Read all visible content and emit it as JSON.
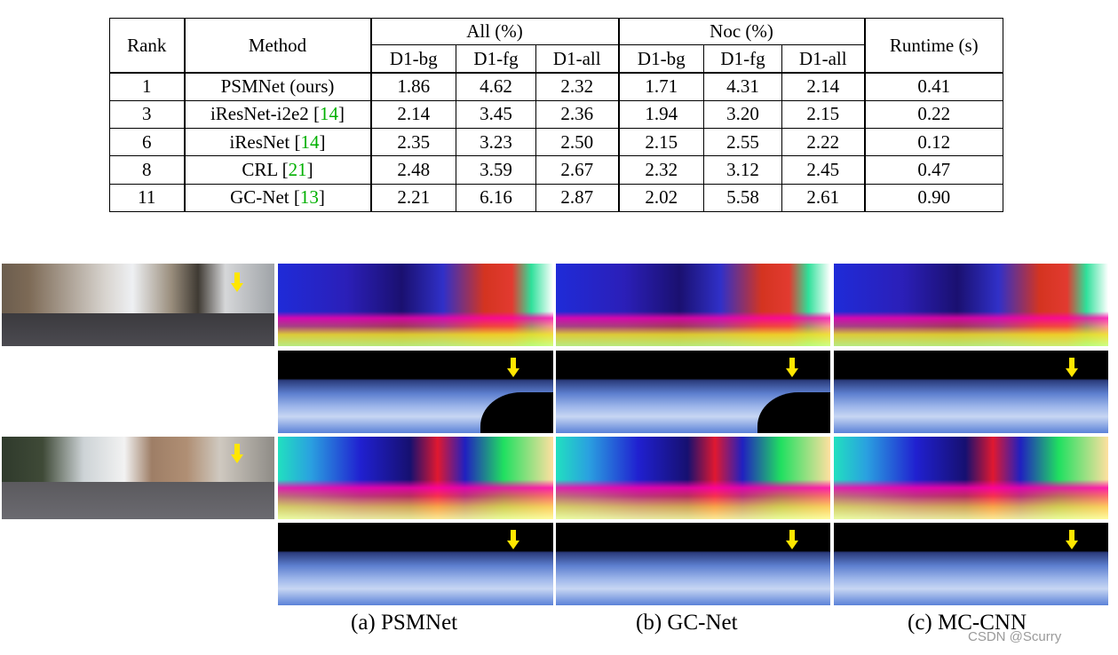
{
  "table": {
    "header": {
      "rank": "Rank",
      "method": "Method",
      "all_group": "All (%)",
      "noc_group": "Noc (%)",
      "runtime": "Runtime (s)",
      "sub": [
        "D1-bg",
        "D1-fg",
        "D1-all",
        "D1-bg",
        "D1-fg",
        "D1-all"
      ]
    },
    "rows": [
      {
        "rank": "1",
        "method": "PSMNet (ours)",
        "cite": "",
        "all_bg": "1.86",
        "all_fg": "4.62",
        "all_all": "2.32",
        "noc_bg": "1.71",
        "noc_fg": "4.31",
        "noc_all": "2.14",
        "runtime": "0.41"
      },
      {
        "rank": "3",
        "method": "iResNet-i2e2",
        "cite": "14",
        "all_bg": "2.14",
        "all_fg": "3.45",
        "all_all": "2.36",
        "noc_bg": "1.94",
        "noc_fg": "3.20",
        "noc_all": "2.15",
        "runtime": "0.22"
      },
      {
        "rank": "6",
        "method": "iResNet",
        "cite": "14",
        "all_bg": "2.35",
        "all_fg": "3.23",
        "all_all": "2.50",
        "noc_bg": "2.15",
        "noc_fg": "2.55",
        "noc_all": "2.22",
        "runtime": "0.12"
      },
      {
        "rank": "8",
        "method": "CRL",
        "cite": "21",
        "all_bg": "2.48",
        "all_fg": "3.59",
        "all_all": "2.67",
        "noc_bg": "2.32",
        "noc_fg": "3.12",
        "noc_all": "2.45",
        "runtime": "0.47"
      },
      {
        "rank": "11",
        "method": "GC-Net",
        "cite": "13",
        "all_bg": "2.21",
        "all_fg": "6.16",
        "all_all": "2.87",
        "noc_bg": "2.02",
        "noc_fg": "5.58",
        "noc_all": "2.61",
        "runtime": "0.90"
      }
    ]
  },
  "figure": {
    "captions": [
      "(a) PSMNet",
      "(b) GC-Net",
      "(c) MC-CNN"
    ]
  },
  "watermark": "CSDN @Scurry",
  "colors": {
    "citation": "#00b000",
    "arrow": "#ffe600"
  }
}
